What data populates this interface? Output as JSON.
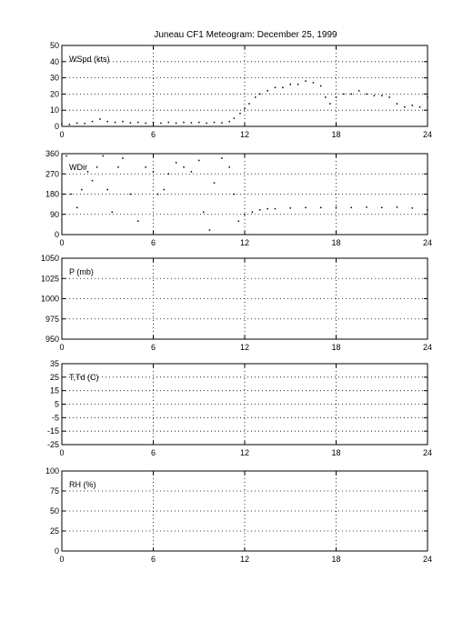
{
  "title": "Juneau CF1 Meteogram:  December 25, 1999",
  "chart_data": [
    {
      "type": "scatter",
      "label": "WSpd (kts)",
      "x_ticks": [
        0,
        6,
        12,
        18,
        24
      ],
      "y_ticks": [
        0,
        10,
        20,
        30,
        40,
        50
      ],
      "xlim": [
        0,
        24
      ],
      "ylim": [
        0,
        50
      ],
      "grid": true,
      "series": [
        {
          "values": [
            [
              0,
              1.5
            ],
            [
              0.5,
              1.2
            ],
            [
              1,
              2
            ],
            [
              1.5,
              1.8
            ],
            [
              2,
              3
            ],
            [
              2.5,
              4.5
            ],
            [
              3,
              3
            ],
            [
              3.5,
              2.5
            ],
            [
              4,
              3
            ],
            [
              4.5,
              2.2
            ],
            [
              5,
              2.5
            ],
            [
              5.5,
              2
            ],
            [
              6,
              2.5
            ],
            [
              6.5,
              2
            ],
            [
              7,
              2.5
            ],
            [
              7.5,
              2
            ],
            [
              8,
              2.5
            ],
            [
              8.5,
              2.2
            ],
            [
              9,
              2.5
            ],
            [
              9.5,
              2
            ],
            [
              10,
              2.5
            ],
            [
              10.5,
              2.2
            ],
            [
              11,
              3
            ],
            [
              11.3,
              5
            ],
            [
              11.7,
              8
            ],
            [
              12,
              11
            ],
            [
              12.3,
              14
            ],
            [
              12.7,
              18
            ],
            [
              13,
              20
            ],
            [
              13.5,
              22
            ],
            [
              14,
              24
            ],
            [
              14.5,
              24
            ],
            [
              15,
              26
            ],
            [
              15.5,
              26
            ],
            [
              16,
              28
            ],
            [
              16.5,
              27
            ],
            [
              17,
              25
            ],
            [
              17.3,
              18
            ],
            [
              17.6,
              14
            ],
            [
              18,
              18
            ],
            [
              18.5,
              20
            ],
            [
              19,
              20
            ],
            [
              19.5,
              22
            ],
            [
              20,
              20
            ],
            [
              20.5,
              19
            ],
            [
              21,
              19
            ],
            [
              21.5,
              18
            ],
            [
              22,
              14
            ],
            [
              22.5,
              12
            ],
            [
              23,
              13
            ],
            [
              23.5,
              12
            ],
            [
              24,
              18
            ]
          ]
        }
      ]
    },
    {
      "type": "scatter",
      "label": "WDir",
      "x_ticks": [
        0,
        6,
        12,
        18,
        24
      ],
      "y_ticks": [
        0,
        90,
        180,
        270,
        360
      ],
      "xlim": [
        0,
        24
      ],
      "ylim": [
        0,
        360
      ],
      "grid": true,
      "series": [
        {
          "values": [
            [
              0.3,
              350
            ],
            [
              0.6,
              180
            ],
            [
              1,
              120
            ],
            [
              1.3,
              200
            ],
            [
              1.7,
              280
            ],
            [
              2,
              240
            ],
            [
              2.3,
              300
            ],
            [
              2.7,
              350
            ],
            [
              3,
              200
            ],
            [
              3.3,
              100
            ],
            [
              3.7,
              300
            ],
            [
              4,
              340
            ],
            [
              4.5,
              180
            ],
            [
              5,
              60
            ],
            [
              5.5,
              300
            ],
            [
              6,
              280
            ],
            [
              6.3,
              180
            ],
            [
              6.7,
              200
            ],
            [
              7,
              270
            ],
            [
              7.5,
              320
            ],
            [
              8,
              300
            ],
            [
              8.5,
              280
            ],
            [
              9,
              330
            ],
            [
              9.3,
              100
            ],
            [
              9.7,
              20
            ],
            [
              10,
              230
            ],
            [
              10.5,
              340
            ],
            [
              11,
              300
            ],
            [
              11.3,
              180
            ],
            [
              11.6,
              60
            ],
            [
              12,
              90
            ],
            [
              12.5,
              100
            ],
            [
              13,
              110
            ],
            [
              13.5,
              115
            ],
            [
              14,
              115
            ],
            [
              15,
              118
            ],
            [
              16,
              120
            ],
            [
              17,
              120
            ],
            [
              18,
              122
            ],
            [
              19,
              120
            ],
            [
              20,
              122
            ],
            [
              21,
              120
            ],
            [
              22,
              122
            ],
            [
              23,
              118
            ],
            [
              24,
              110
            ]
          ]
        }
      ]
    },
    {
      "type": "scatter",
      "label": "P (mb)",
      "x_ticks": [
        0,
        6,
        12,
        18,
        24
      ],
      "y_ticks": [
        950,
        975,
        1000,
        1025,
        1050
      ],
      "xlim": [
        0,
        24
      ],
      "ylim": [
        950,
        1050
      ],
      "grid": true,
      "series": []
    },
    {
      "type": "scatter",
      "label": "T,Td (C)",
      "x_ticks": [
        0,
        6,
        12,
        18,
        24
      ],
      "y_ticks": [
        -25,
        -15,
        -5,
        5,
        15,
        25,
        35
      ],
      "xlim": [
        0,
        24
      ],
      "ylim": [
        -25,
        35
      ],
      "grid": true,
      "series": []
    },
    {
      "type": "scatter",
      "label": "RH (%)",
      "x_ticks": [
        0,
        6,
        12,
        18,
        24
      ],
      "y_ticks": [
        0,
        25,
        50,
        75,
        100
      ],
      "xlim": [
        0,
        24
      ],
      "ylim": [
        0,
        100
      ],
      "grid": true,
      "series": []
    }
  ]
}
